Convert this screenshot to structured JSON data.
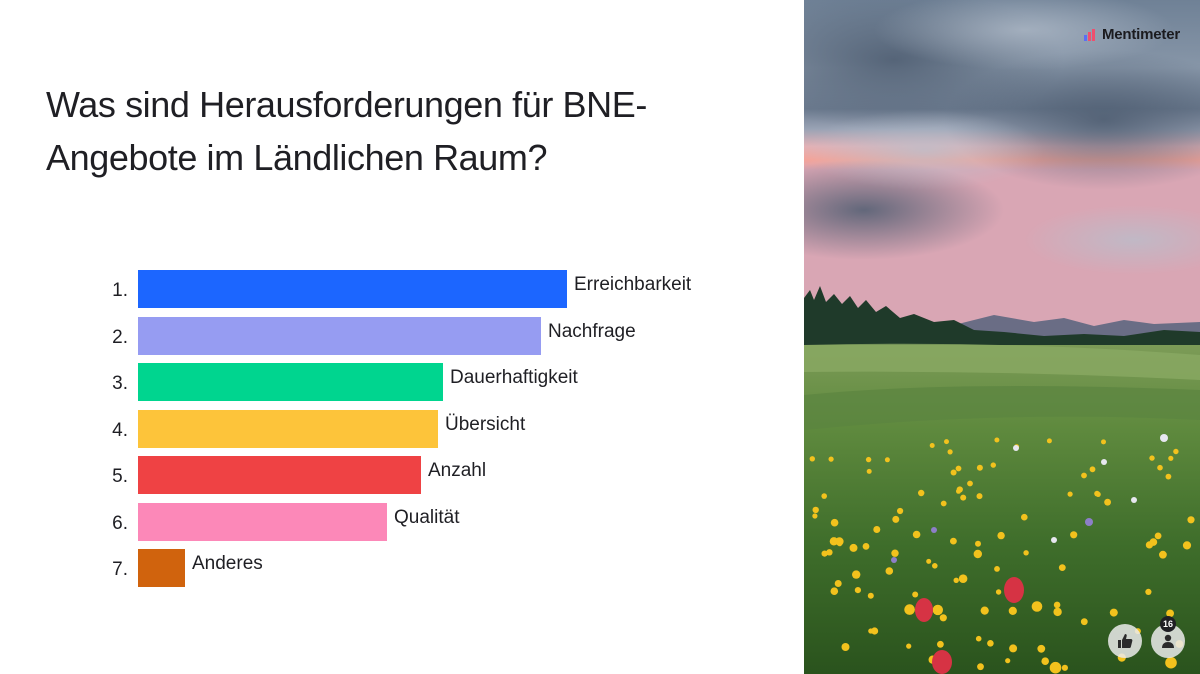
{
  "question": "Was sind Herausforderungen für BNE-Angebote im Ländlichen Raum?",
  "brand": {
    "name": "Mentimeter",
    "logo_icon": "mentimeter-logo-icon"
  },
  "participants_count": "16",
  "chart_data": {
    "type": "bar",
    "orientation": "horizontal",
    "ranked": true,
    "ranks": [
      "1.",
      "2.",
      "3.",
      "4.",
      "5.",
      "6.",
      "7."
    ],
    "categories": [
      "Erreichbarkeit",
      "Nachfrage",
      "Dauerhaftigkeit",
      "Übersicht",
      "Anzahl",
      "Qualität",
      "Anderes"
    ],
    "values": [
      100,
      94,
      71,
      70,
      66,
      58,
      11
    ],
    "colors": [
      "#1c66ff",
      "#969cf2",
      "#00d58f",
      "#fdc43a",
      "#ef4244",
      "#fc88b8",
      "#d0630d"
    ],
    "xlim": [
      0,
      100
    ],
    "title": "",
    "xlabel": "",
    "ylabel": "",
    "grid": false,
    "legend": "none"
  },
  "icons": {
    "like": "thumbs-up-icon",
    "participants": "person-icon"
  }
}
